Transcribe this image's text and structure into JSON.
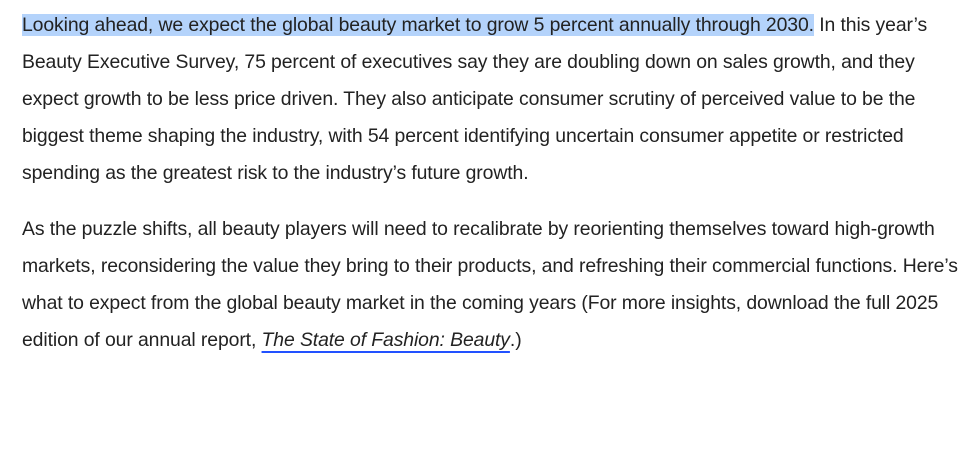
{
  "article": {
    "paragraph1": {
      "highlighted": "Looking ahead, we expect the global beauty market to grow 5 percent annually through 2030.",
      "rest": " In this year’s Beauty Executive Survey, 75 percent of executives say they are doubling down on sales growth, and they expect growth to be less price driven. They also anticipate consumer scrutiny of perceived value to be the biggest theme shaping the industry, with 54 percent identifying uncertain consumer appetite or restricted spending as the greatest risk to the industry’s future growth."
    },
    "paragraph2": {
      "text_before_link": "As the puzzle shifts, all beauty players will need to recalibrate by reorienting themselves toward high-growth markets, reconsidering the value they bring to their products, and refreshing their commercial functions. Here’s what to expect from the global beauty market in the coming years (For more insights, download the full 2025 edition of our annual report, ",
      "link_text": "The State of Fashion: Beauty",
      "text_after_link": ".)"
    }
  },
  "colors": {
    "text": "#222222",
    "highlight": "#b4d3fb",
    "link_underline": "#2251ff"
  }
}
